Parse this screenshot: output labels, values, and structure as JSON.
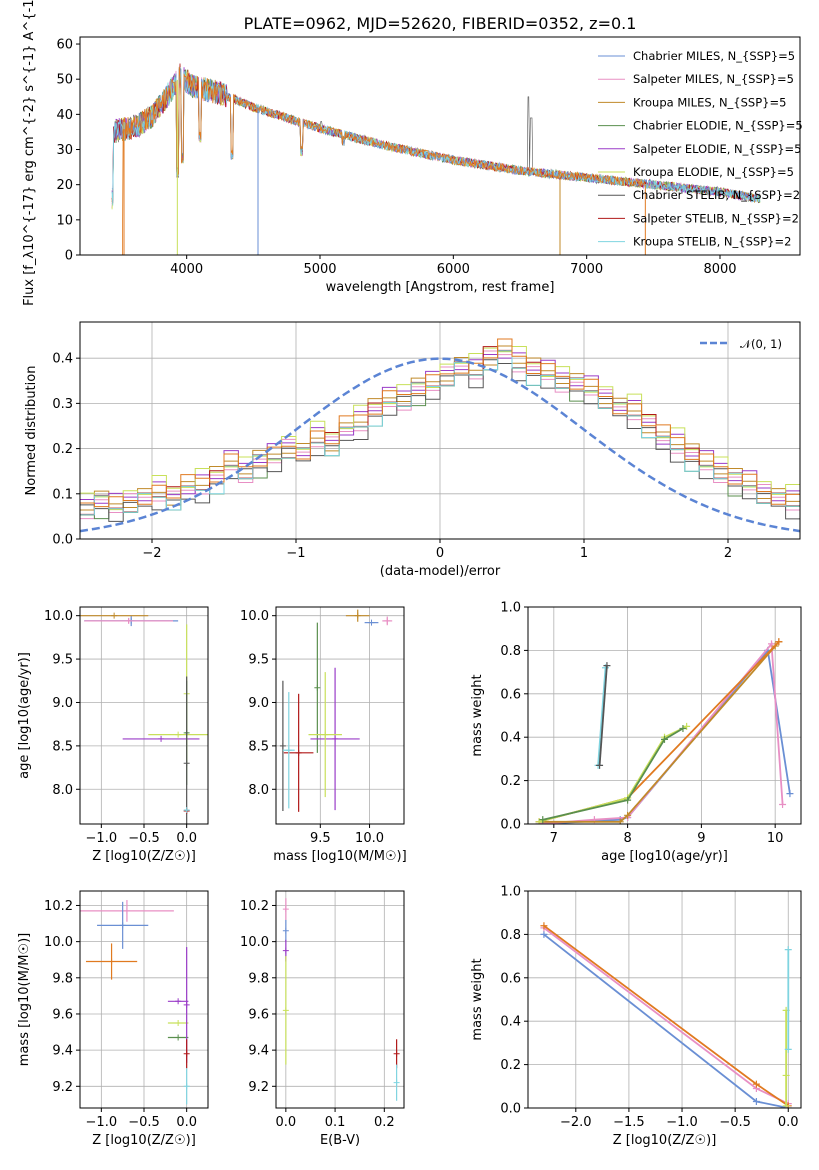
{
  "figure": {
    "title": "PLATE=0962, MJD=52620, FIBERID=0352, z=0.1"
  },
  "colors": {
    "series": [
      "#6a8fd4",
      "#e88fc4",
      "#c08a2a",
      "#5a8f4e",
      "#9a3cc8",
      "#c8e05a",
      "#555555",
      "#b01818",
      "#7fd4e0"
    ],
    "orange": "#e07a20",
    "gaussian": "#5b84d4",
    "grey": "#999999"
  },
  "legend": [
    "Chabrier MILES, N_{SSP}=5",
    "Salpeter MILES, N_{SSP}=5",
    "Kroupa MILES, N_{SSP}=5",
    "Chabrier ELODIE, N_{SSP}=5",
    "Salpeter ELODIE, N_{SSP}=5",
    "Kroupa ELODIE, N_{SSP}=5",
    "Chabrier STELIB, N_{SSP}=2",
    "Salpeter STELIB, N_{SSP}=2",
    "Kroupa STELIB, N_{SSP}=2"
  ],
  "chart_data": [
    {
      "id": "spectrum",
      "type": "line",
      "xlabel": "wavelength [Angstrom, rest frame]",
      "ylabel": "Flux [f_λ10^{-17} erg cm^{-2} s^{-1} A^{-1}]",
      "xlim": [
        3200,
        8600
      ],
      "ylim": [
        0,
        62
      ],
      "xticks": [
        4000,
        5000,
        6000,
        7000,
        8000
      ],
      "yticks": [
        0,
        10,
        20,
        30,
        40,
        50,
        60
      ],
      "grid": false,
      "legend_position": "upper-right",
      "continuum": {
        "x": [
          3450,
          3550,
          3650,
          3750,
          3850,
          3950,
          4050,
          4250,
          4500,
          5000,
          5500,
          6000,
          6500,
          7000,
          7500,
          8000,
          8300
        ],
        "y": [
          35,
          36,
          37,
          40,
          45,
          51,
          48,
          46,
          42,
          36,
          31,
          27,
          24,
          22,
          20,
          18,
          16
        ]
      },
      "absorption_lines": [
        {
          "x": 3934,
          "y": 22
        },
        {
          "x": 3968,
          "y": 26
        },
        {
          "x": 4101,
          "y": 32
        },
        {
          "x": 4340,
          "y": 27
        },
        {
          "x": 4861,
          "y": 28
        },
        {
          "x": 5175,
          "y": 31
        }
      ],
      "emission_lines": [
        {
          "x": 6563,
          "y": 45
        },
        {
          "x": 6584,
          "y": 39
        },
        {
          "x": 5007,
          "y": 38
        }
      ]
    },
    {
      "id": "residuals",
      "type": "histogram",
      "xlabel": "(data-model)/error",
      "ylabel": "Normed distribution",
      "xlim": [
        -2.5,
        2.5
      ],
      "ylim": [
        0,
        0.48
      ],
      "xticks": [
        -2,
        -1,
        0,
        1,
        2
      ],
      "yticks": [
        0.0,
        0.1,
        0.2,
        0.3,
        0.4
      ],
      "grid": true,
      "legend": "𝒩(0, 1)",
      "legend_position": "upper-right",
      "bin_width": 0.1,
      "bin_start": -2.5,
      "base_profile": [
        0.07,
        0.08,
        0.07,
        0.08,
        0.09,
        0.1,
        0.09,
        0.11,
        0.12,
        0.13,
        0.16,
        0.15,
        0.17,
        0.18,
        0.2,
        0.19,
        0.22,
        0.21,
        0.24,
        0.26,
        0.28,
        0.3,
        0.31,
        0.33,
        0.34,
        0.36,
        0.38,
        0.37,
        0.4,
        0.41,
        0.39,
        0.37,
        0.36,
        0.35,
        0.34,
        0.33,
        0.31,
        0.29,
        0.28,
        0.25,
        0.22,
        0.21,
        0.18,
        0.16,
        0.15,
        0.13,
        0.12,
        0.1,
        0.09,
        0.08
      ],
      "offsets": [
        0.0,
        0.01,
        -0.01,
        0.015,
        0.02,
        -0.015,
        0.005,
        -0.005,
        0.012
      ]
    },
    {
      "id": "age-vs-metallicity",
      "type": "errorbar",
      "xlabel": "Z [log10(Z/Z☉)]",
      "ylabel": "age  [log10(age/yr)]",
      "xlim": [
        -1.25,
        0.25
      ],
      "ylim": [
        7.6,
        10.1
      ],
      "xticks": [
        -1.0,
        -0.5,
        0.0
      ],
      "yticks": [
        8.0,
        8.5,
        9.0,
        9.5,
        10.0
      ],
      "grid": true,
      "points": [
        {
          "c": 0,
          "x": -0.65,
          "xerr": 0.55,
          "y": 9.94,
          "yerr": 0.06
        },
        {
          "c": 1,
          "x": -0.68,
          "xerr": 0.52,
          "y": 9.94,
          "yerr": 0.03
        },
        {
          "c": 2,
          "x": -0.85,
          "xerr": 0.4,
          "y": 10.0,
          "yerr": 0.0
        },
        {
          "c": 4,
          "x": -0.3,
          "xerr": 0.45,
          "y": 8.58,
          "yerr": 0.0
        },
        {
          "c": 5,
          "x": -0.1,
          "xerr": 0.35,
          "y": 8.63,
          "yerr": 0.0
        },
        {
          "c": 5,
          "x": 0.0,
          "xerr": 0.0,
          "y": 9.1,
          "yerr": 0.8
        },
        {
          "c": 3,
          "x": 0.0,
          "xerr": 0.02,
          "y": 8.65,
          "yerr": 0.6
        },
        {
          "c": 6,
          "x": 0.0,
          "xerr": 0.0,
          "y": 8.3,
          "yerr": 1.0
        },
        {
          "c": 7,
          "x": 0.0,
          "xerr": 0.0,
          "y": 7.75,
          "yerr": 0.02
        },
        {
          "c": 8,
          "x": 0.0,
          "xerr": 0.03,
          "y": 7.76,
          "yerr": 0.0
        }
      ]
    },
    {
      "id": "age-vs-mass",
      "type": "errorbar",
      "xlabel": "mass [log10(M/M☉)]",
      "ylabel": "",
      "xlim": [
        9.05,
        10.35
      ],
      "ylim": [
        7.6,
        10.1
      ],
      "xticks": [
        9.5,
        10.0
      ],
      "yticks": [
        8.0,
        8.5,
        9.0,
        9.5,
        10.0
      ],
      "grid": true,
      "points": [
        {
          "c": 0,
          "x": 10.02,
          "xerr": 0.07,
          "y": 9.92,
          "yerr": 0.0
        },
        {
          "c": 1,
          "x": 10.18,
          "xerr": 0.05,
          "y": 9.94,
          "yerr": 0.05
        },
        {
          "c": 2,
          "x": 9.88,
          "xerr": 0.12,
          "y": 10.0,
          "yerr": 0.07
        },
        {
          "c": 3,
          "x": 9.47,
          "xerr": 0.0,
          "y": 9.17,
          "yerr": 0.75
        },
        {
          "c": 4,
          "x": 9.65,
          "xerr": 0.25,
          "y": 8.58,
          "yerr": 0.82
        },
        {
          "c": 5,
          "x": 9.55,
          "xerr": 0.17,
          "y": 8.63,
          "yerr": 0.72
        },
        {
          "c": 6,
          "x": 9.12,
          "xerr": 0.0,
          "y": 8.5,
          "yerr": 0.75
        },
        {
          "c": 7,
          "x": 9.28,
          "xerr": 0.15,
          "y": 8.42,
          "yerr": 0.68
        },
        {
          "c": 8,
          "x": 9.18,
          "xerr": 0.06,
          "y": 8.45,
          "yerr": 0.67
        }
      ]
    },
    {
      "id": "mass-weight-vs-age",
      "type": "line",
      "xlabel": "age  [log10(age/yr)]",
      "ylabel": "mass weight",
      "xlim": [
        6.65,
        10.35
      ],
      "ylim": [
        0,
        1.0
      ],
      "xticks": [
        7,
        8,
        9,
        10
      ],
      "yticks": [
        0.0,
        0.2,
        0.4,
        0.6,
        0.8,
        1.0
      ],
      "grid": true,
      "series": [
        {
          "c": 0,
          "x": [
            6.8,
            7.9,
            8.0,
            9.9,
            10.2
          ],
          "y": [
            0.0,
            0.02,
            0.03,
            0.8,
            0.14
          ]
        },
        {
          "c": 1,
          "x": [
            6.8,
            7.55,
            8.0,
            9.95,
            10.1
          ],
          "y": [
            0.0,
            0.02,
            0.03,
            0.83,
            0.09
          ]
        },
        {
          "c": 2,
          "x": [
            6.8,
            7.9,
            8.0,
            10.0,
            10.05
          ],
          "y": [
            0.01,
            0.01,
            0.04,
            0.82,
            0.84
          ]
        },
        {
          "c": 9,
          "x": [
            6.8,
            8.0,
            10.05
          ],
          "y": [
            0.01,
            0.12,
            0.84
          ]
        },
        {
          "c": 5,
          "x": [
            6.8,
            8.0,
            8.5,
            8.8
          ],
          "y": [
            0.01,
            0.12,
            0.4,
            0.45
          ]
        },
        {
          "c": 3,
          "x": [
            6.85,
            8.0,
            8.5,
            8.75
          ],
          "y": [
            0.02,
            0.11,
            0.39,
            0.44
          ]
        },
        {
          "c": 8,
          "x": [
            7.6,
            7.7
          ],
          "y": [
            0.27,
            0.72
          ]
        },
        {
          "c": 6,
          "x": [
            7.62,
            7.72
          ],
          "y": [
            0.27,
            0.73
          ]
        }
      ]
    },
    {
      "id": "mass-vs-metallicity",
      "type": "errorbar",
      "xlabel": "Z [log10(Z/Z☉)]",
      "ylabel": "mass [log10(M/M☉)]",
      "xlim": [
        -1.25,
        0.25
      ],
      "ylim": [
        9.08,
        10.28
      ],
      "xticks": [
        -1.0,
        -0.5,
        0.0
      ],
      "yticks": [
        9.2,
        9.4,
        9.6,
        9.8,
        10.0,
        10.2
      ],
      "grid": true,
      "points": [
        {
          "c": 1,
          "x": -0.7,
          "xerr": 0.55,
          "y": 10.17,
          "yerr": 0.06
        },
        {
          "c": 0,
          "x": -0.75,
          "xerr": 0.3,
          "y": 10.09,
          "yerr": 0.13
        },
        {
          "c": 9,
          "x": -0.88,
          "xerr": 0.3,
          "y": 9.89,
          "yerr": 0.1
        },
        {
          "c": 4,
          "x": -0.1,
          "xerr": 0.12,
          "y": 9.67,
          "yerr": 0.0
        },
        {
          "c": 5,
          "x": -0.1,
          "xerr": 0.12,
          "y": 9.55,
          "yerr": 0.0
        },
        {
          "c": 3,
          "x": -0.1,
          "xerr": 0.12,
          "y": 9.47,
          "yerr": 0.0
        },
        {
          "c": 4,
          "x": 0.0,
          "xerr": 0.0,
          "y": 9.65,
          "yerr": 0.32
        },
        {
          "c": 7,
          "x": 0.0,
          "xerr": 0.0,
          "y": 9.38,
          "yerr": 0.08
        },
        {
          "c": 8,
          "x": 0.0,
          "xerr": 0.0,
          "y": 9.2,
          "yerr": 0.1
        }
      ]
    },
    {
      "id": "mass-vs-extinction",
      "type": "errorbar",
      "xlabel": "E(B-V)",
      "ylabel": "",
      "xlim": [
        -0.02,
        0.24
      ],
      "ylim": [
        9.08,
        10.28
      ],
      "xticks": [
        0.0,
        0.1,
        0.2
      ],
      "yticks": [
        9.2,
        9.4,
        9.6,
        9.8,
        10.0,
        10.2
      ],
      "grid": true,
      "points": [
        {
          "c": 1,
          "x": 0.0,
          "xerr": 0.0,
          "y": 10.18,
          "yerr": 0.06
        },
        {
          "c": 0,
          "x": 0.0,
          "xerr": 0.0,
          "y": 10.06,
          "yerr": 0.06
        },
        {
          "c": 4,
          "x": 0.0,
          "xerr": 0.0,
          "y": 9.95,
          "yerr": 0.06
        },
        {
          "c": 5,
          "x": 0.0,
          "xerr": 0.0,
          "y": 9.62,
          "yerr": 0.3
        },
        {
          "c": 7,
          "x": 0.225,
          "xerr": 0.0,
          "y": 9.38,
          "yerr": 0.08
        },
        {
          "c": 8,
          "x": 0.225,
          "xerr": 0.0,
          "y": 9.22,
          "yerr": 0.1
        }
      ]
    },
    {
      "id": "mass-weight-vs-metallicity",
      "type": "line",
      "xlabel": "Z [log10(Z/Z☉)]",
      "ylabel": "mass weight",
      "xlim": [
        -2.45,
        0.12
      ],
      "ylim": [
        0,
        1.0
      ],
      "xticks": [
        -2.0,
        -1.5,
        -1.0,
        -0.5,
        0.0
      ],
      "yticks": [
        0.0,
        0.2,
        0.4,
        0.6,
        0.8,
        1.0
      ],
      "grid": true,
      "series": [
        {
          "c": 0,
          "x": [
            -2.3,
            -0.3,
            0.0
          ],
          "y": [
            0.8,
            0.03,
            0.0
          ]
        },
        {
          "c": 1,
          "x": [
            -2.3,
            -0.3,
            0.0
          ],
          "y": [
            0.83,
            0.09,
            0.02
          ]
        },
        {
          "c": 9,
          "x": [
            -2.3,
            -0.3,
            0.0
          ],
          "y": [
            0.84,
            0.11,
            0.01
          ]
        },
        {
          "c": 5,
          "x": [
            -0.02,
            -0.02,
            -0.02
          ],
          "y": [
            0.01,
            0.15,
            0.45
          ]
        },
        {
          "c": 8,
          "x": [
            0.0,
            0.0
          ],
          "y": [
            0.27,
            0.73
          ]
        }
      ]
    }
  ]
}
